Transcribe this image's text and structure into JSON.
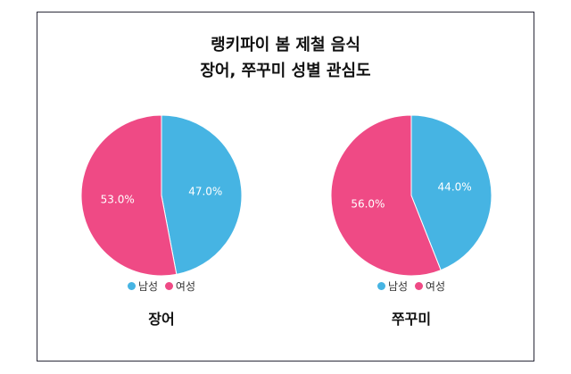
{
  "title_line1": "랭키파이 봄 제철 음식",
  "title_line2": "장어, 쭈꾸미 성별 관심도",
  "colors": {
    "male": "#46b4e3",
    "female": "#ef4a85"
  },
  "chart_data": [
    {
      "type": "pie",
      "title": "장어",
      "categories": [
        "남성",
        "여성"
      ],
      "values": [
        47.0,
        53.0
      ],
      "labels": [
        "47.0%",
        "53.0%"
      ],
      "legend": "bottom"
    },
    {
      "type": "pie",
      "title": "쭈꾸미",
      "categories": [
        "남성",
        "여성"
      ],
      "values": [
        44.0,
        56.0
      ],
      "labels": [
        "44.0%",
        "56.0%"
      ],
      "legend": "bottom"
    }
  ]
}
